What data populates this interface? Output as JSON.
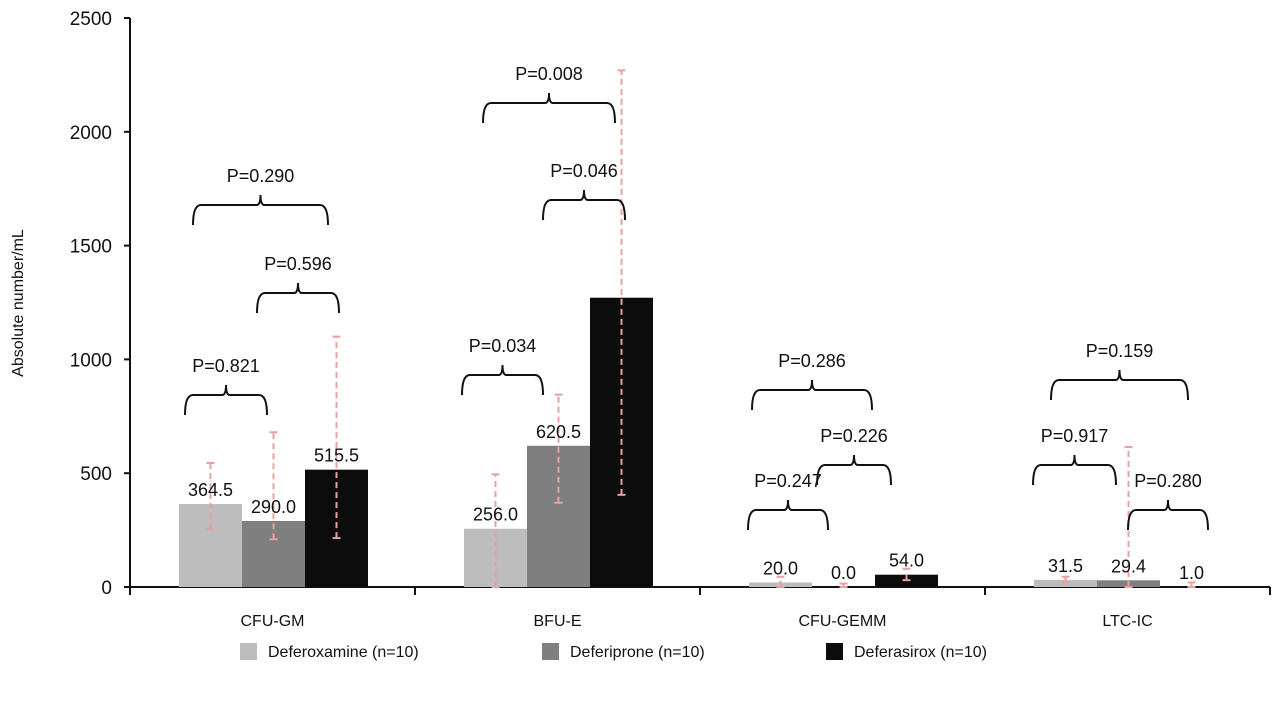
{
  "chart_data": {
    "type": "bar",
    "title": "",
    "xlabel": "",
    "ylabel": "Absolute number/mL",
    "ylim": [
      0,
      2500
    ],
    "yticks": [
      0,
      500,
      1000,
      1500,
      2000,
      2500
    ],
    "grid": false,
    "legend_position": "bottom",
    "categories": [
      "CFU-GM",
      "BFU-E",
      "CFU-GEMM",
      "LTC-IC"
    ],
    "series": [
      {
        "name": "Deferoxamine (n=10)",
        "color": "#bdbdbd",
        "values": [
          364.5,
          256.0,
          20.0,
          31.5
        ],
        "value_labels": [
          "364.5",
          "256.0",
          "20.0",
          "31.5"
        ],
        "error_low": [
          255,
          0,
          0,
          20
        ],
        "error_high": [
          545,
          495,
          45,
          45
        ]
      },
      {
        "name": "Deferiprone (n=10)",
        "color": "#7f7f7f",
        "values": [
          290.0,
          620.5,
          0.0,
          29.4
        ],
        "value_labels": [
          "290.0",
          "620.5",
          "0.0",
          "29.4"
        ],
        "error_low": [
          210,
          370,
          0,
          0
        ],
        "error_high": [
          680,
          845,
          15,
          615
        ]
      },
      {
        "name": "Deferasirox (n=10)",
        "color": "#0c0c0c",
        "values": [
          515.5,
          1271.0,
          54.0,
          1.0
        ],
        "value_labels": [
          "515.5",
          "",
          "54.0",
          "1.0"
        ],
        "error_low": [
          215,
          405,
          30,
          0
        ],
        "error_high": [
          1100,
          2270,
          80,
          20
        ]
      }
    ],
    "error_bar_color": "#e8a0a0",
    "annotations": [
      {
        "category": "CFU-GM",
        "text": "P=0.821",
        "between": [
          0,
          1
        ]
      },
      {
        "category": "CFU-GM",
        "text": "P=0.596",
        "between": [
          1,
          2
        ]
      },
      {
        "category": "CFU-GM",
        "text": "P=0.290",
        "between": [
          0,
          2
        ]
      },
      {
        "category": "BFU-E",
        "text": "P=0.034",
        "between": [
          0,
          1
        ]
      },
      {
        "category": "BFU-E",
        "text": "P=0.046",
        "between": [
          1,
          2
        ]
      },
      {
        "category": "BFU-E",
        "text": "P=0.008",
        "between": [
          0,
          2
        ]
      },
      {
        "category": "CFU-GEMM",
        "text": "P=0.247",
        "between": [
          0,
          1
        ]
      },
      {
        "category": "CFU-GEMM",
        "text": "P=0.226",
        "between": [
          1,
          2
        ]
      },
      {
        "category": "CFU-GEMM",
        "text": "P=0.286",
        "between": [
          0,
          2
        ]
      },
      {
        "category": "LTC-IC",
        "text": "P=0.917",
        "between": [
          0,
          1
        ]
      },
      {
        "category": "LTC-IC",
        "text": "P=0.280",
        "between": [
          1,
          2
        ]
      },
      {
        "category": "LTC-IC",
        "text": "P=0.159",
        "between": [
          0,
          2
        ]
      }
    ]
  }
}
